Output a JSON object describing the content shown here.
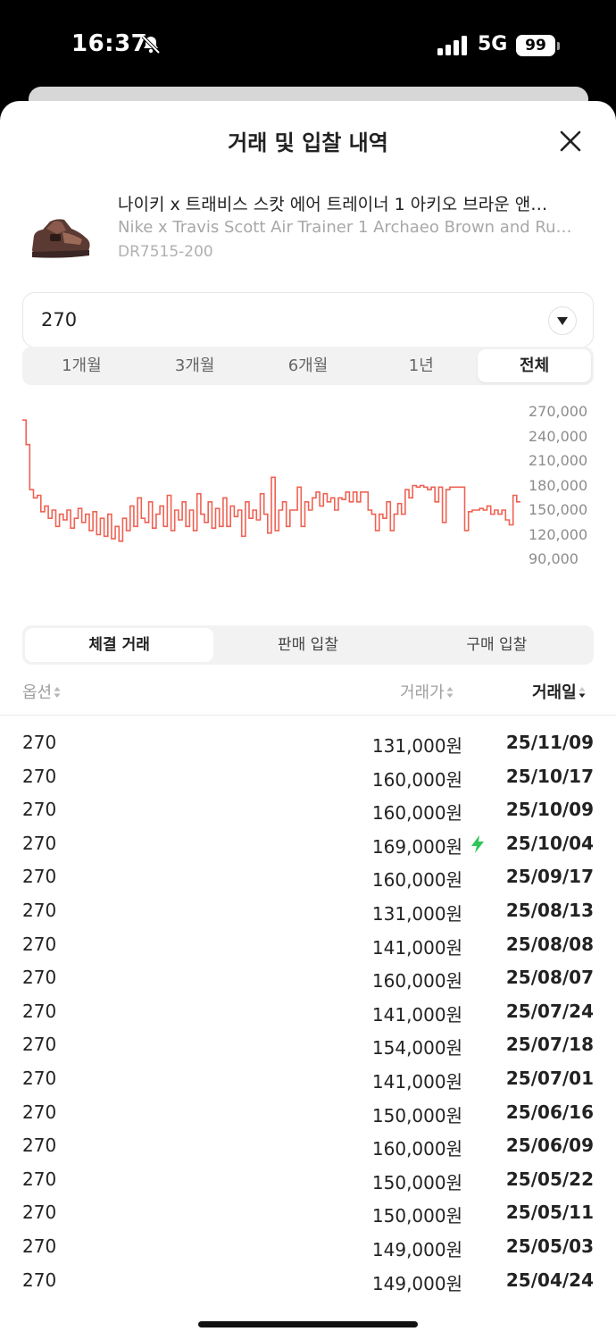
{
  "status_bar": {
    "time": "16:37",
    "network": "5G",
    "battery": "99"
  },
  "sheet": {
    "title": "거래 및 입찰 내역"
  },
  "product": {
    "name_ko": "나이키 x 트래비스 스캇 에어 트레이너 1 아키오 브라운 앤…",
    "name_en": "Nike x Travis Scott Air Trainer 1 Archaeo Brown and Ru…",
    "code": "DR7515-200"
  },
  "size_select": {
    "value": "270"
  },
  "period_tabs": [
    "1개월",
    "3개월",
    "6개월",
    "1년",
    "전체"
  ],
  "period_active": 4,
  "chart_data": {
    "type": "line",
    "y_ticks": [
      "270,000",
      "240,000",
      "210,000",
      "180,000",
      "150,000",
      "120,000",
      "90,000"
    ],
    "ylim": [
      90000,
      270000
    ],
    "line_color": "#ef6253",
    "step": true,
    "values": [
      260000,
      230000,
      175000,
      165000,
      168000,
      148000,
      155000,
      140000,
      150000,
      130000,
      145000,
      138000,
      150000,
      128000,
      140000,
      152000,
      135000,
      145000,
      125000,
      148000,
      120000,
      140000,
      118000,
      145000,
      115000,
      130000,
      112000,
      140000,
      125000,
      155000,
      130000,
      165000,
      140000,
      135000,
      160000,
      128000,
      145000,
      155000,
      130000,
      168000,
      125000,
      150000,
      138000,
      160000,
      130000,
      150000,
      125000,
      170000,
      145000,
      135000,
      160000,
      128000,
      152000,
      130000,
      165000,
      130000,
      155000,
      142000,
      150000,
      118000,
      160000,
      140000,
      150000,
      138000,
      170000,
      145000,
      122000,
      190000,
      125000,
      150000,
      160000,
      130000,
      150000,
      150000,
      178000,
      130000,
      160000,
      150000,
      165000,
      172000,
      155000,
      170000,
      160000,
      165000,
      150000,
      165000,
      163000,
      172000,
      160000,
      172000,
      160000,
      172000,
      172000,
      150000,
      145000,
      125000,
      145000,
      140000,
      160000,
      125000,
      145000,
      158000,
      145000,
      175000,
      165000,
      180000,
      178000,
      180000,
      178000,
      175000,
      178000,
      160000,
      178000,
      135000,
      175000,
      178000,
      178000,
      178000,
      178000,
      125000,
      148000,
      150000,
      150000,
      152000,
      150000,
      155000,
      145000,
      150000,
      145000,
      150000,
      138000,
      132000,
      168000,
      160000,
      160000
    ]
  },
  "trade_tabs": [
    "체결 거래",
    "판매 입찰",
    "구매 입찰"
  ],
  "trade_active": 0,
  "table": {
    "headers": {
      "option": "옵션",
      "price": "거래가",
      "date": "거래일"
    },
    "rows": [
      {
        "size": "270",
        "price": "131,000원",
        "date": "25/11/09",
        "quick": false
      },
      {
        "size": "270",
        "price": "160,000원",
        "date": "25/10/17",
        "quick": false
      },
      {
        "size": "270",
        "price": "160,000원",
        "date": "25/10/09",
        "quick": false
      },
      {
        "size": "270",
        "price": "169,000원",
        "date": "25/10/04",
        "quick": true
      },
      {
        "size": "270",
        "price": "160,000원",
        "date": "25/09/17",
        "quick": false
      },
      {
        "size": "270",
        "price": "131,000원",
        "date": "25/08/13",
        "quick": false
      },
      {
        "size": "270",
        "price": "141,000원",
        "date": "25/08/08",
        "quick": false
      },
      {
        "size": "270",
        "price": "160,000원",
        "date": "25/08/07",
        "quick": false
      },
      {
        "size": "270",
        "price": "141,000원",
        "date": "25/07/24",
        "quick": false
      },
      {
        "size": "270",
        "price": "154,000원",
        "date": "25/07/18",
        "quick": false
      },
      {
        "size": "270",
        "price": "141,000원",
        "date": "25/07/01",
        "quick": false
      },
      {
        "size": "270",
        "price": "150,000원",
        "date": "25/06/16",
        "quick": false
      },
      {
        "size": "270",
        "price": "160,000원",
        "date": "25/06/09",
        "quick": false
      },
      {
        "size": "270",
        "price": "150,000원",
        "date": "25/05/22",
        "quick": false
      },
      {
        "size": "270",
        "price": "150,000원",
        "date": "25/05/11",
        "quick": false
      },
      {
        "size": "270",
        "price": "149,000원",
        "date": "25/05/03",
        "quick": false
      },
      {
        "size": "270",
        "price": "149,000원",
        "date": "25/04/24",
        "quick": false
      }
    ]
  }
}
